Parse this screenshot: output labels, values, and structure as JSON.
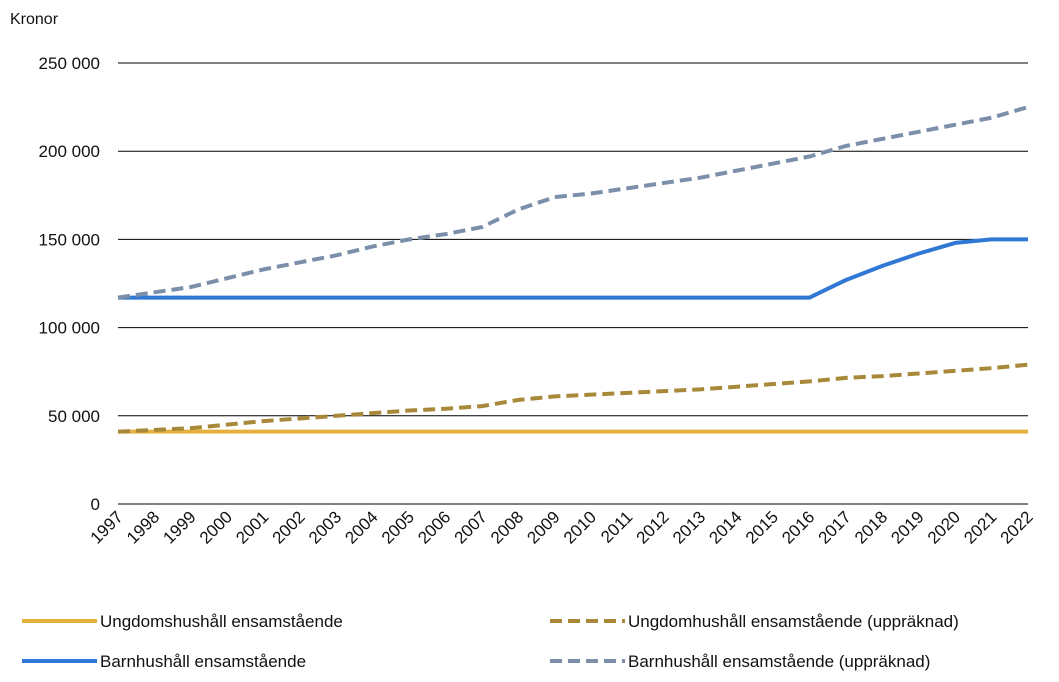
{
  "chart_data": {
    "type": "line",
    "y_label": "Kronor",
    "categories": [
      "1997",
      "1998",
      "1999",
      "2000",
      "2001",
      "2002",
      "2003",
      "2004",
      "2005",
      "2006",
      "2007",
      "2008",
      "2009",
      "2010",
      "2011",
      "2012",
      "2013",
      "2014",
      "2015",
      "2016",
      "2017",
      "2018",
      "2019",
      "2020",
      "2021",
      "2022"
    ],
    "series": [
      {
        "name": "Ungdomshushåll ensamstående",
        "color": "#e5b03e",
        "line_style": "solid",
        "values": [
          41000,
          41000,
          41000,
          41000,
          41000,
          41000,
          41000,
          41000,
          41000,
          41000,
          41000,
          41000,
          41000,
          41000,
          41000,
          41000,
          41000,
          41000,
          41000,
          41000,
          41000,
          41000,
          41000,
          41000,
          41000,
          41000
        ]
      },
      {
        "name": "Ungdomhushåll ensamstående (uppräknad)",
        "color": "#a8893a",
        "line_style": "dashed",
        "values": [
          41000,
          42000,
          43000,
          45000,
          47000,
          48500,
          50000,
          51500,
          53000,
          54000,
          55500,
          59000,
          61000,
          62000,
          63000,
          64000,
          65000,
          66500,
          68000,
          69500,
          71500,
          72500,
          74000,
          75500,
          77000,
          79000
        ]
      },
      {
        "name": "Barnhushåll ensamstående",
        "color": "#3178d4",
        "line_style": "solid",
        "values": [
          117000,
          117000,
          117000,
          117000,
          117000,
          117000,
          117000,
          117000,
          117000,
          117000,
          117000,
          117000,
          117000,
          117000,
          117000,
          117000,
          117000,
          117000,
          117000,
          117000,
          127000,
          135000,
          142000,
          148000,
          150000,
          150000
        ]
      },
      {
        "name": "Barnhushåll ensamstående (uppräknad)",
        "color": "#7b8faa",
        "line_style": "dashed",
        "values": [
          117000,
          120000,
          123000,
          128000,
          133000,
          137000,
          141000,
          146000,
          150000,
          153000,
          157000,
          167000,
          174000,
          176000,
          179000,
          182000,
          185000,
          189000,
          193000,
          197000,
          203000,
          207000,
          211000,
          215000,
          219000,
          225000
        ]
      }
    ],
    "ylim": [
      0,
      250000
    ],
    "yticks": [
      0,
      {
        "value": 50000,
        "label": "50 000"
      },
      {
        "value": 100000,
        "label": "100 000"
      },
      {
        "value": 150000,
        "label": "150 000"
      },
      {
        "value": 200000,
        "label": "200 000"
      },
      {
        "value": 250000,
        "label": "250 000"
      }
    ],
    "grid": true,
    "legend": "bottom"
  }
}
